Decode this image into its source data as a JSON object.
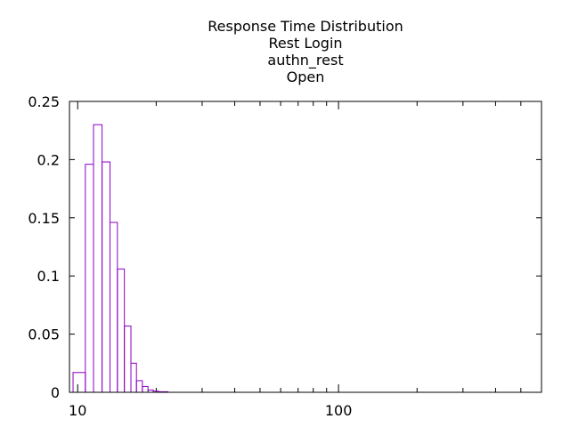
{
  "chart_data": {
    "type": "bar",
    "title_lines": [
      "Response Time Distribution",
      "Rest Login",
      "authn_rest",
      "Open"
    ],
    "x_scale": "log",
    "xlim": [
      9.3,
      600
    ],
    "ylim": [
      0,
      0.25
    ],
    "x_ticks": [
      {
        "value": 10,
        "label": "10"
      },
      {
        "value": 100,
        "label": "100"
      }
    ],
    "y_ticks": [
      {
        "value": 0,
        "label": "0"
      },
      {
        "value": 0.05,
        "label": "0.05"
      },
      {
        "value": 0.1,
        "label": "0.1"
      },
      {
        "value": 0.15,
        "label": "0.15"
      },
      {
        "value": 0.2,
        "label": "0.2"
      },
      {
        "value": 0.25,
        "label": "0.25"
      }
    ],
    "bar_color": "#8b00c8",
    "bins": [
      {
        "x0": 9.6,
        "x1": 10.7,
        "value": 0.017
      },
      {
        "x0": 10.7,
        "x1": 11.5,
        "value": 0.196
      },
      {
        "x0": 11.5,
        "x1": 12.4,
        "value": 0.23
      },
      {
        "x0": 12.4,
        "x1": 13.3,
        "value": 0.198
      },
      {
        "x0": 13.3,
        "x1": 14.2,
        "value": 0.146
      },
      {
        "x0": 14.2,
        "x1": 15.1,
        "value": 0.106
      },
      {
        "x0": 15.1,
        "x1": 16.0,
        "value": 0.057
      },
      {
        "x0": 16.0,
        "x1": 16.8,
        "value": 0.025
      },
      {
        "x0": 16.8,
        "x1": 17.7,
        "value": 0.01
      },
      {
        "x0": 17.7,
        "x1": 18.6,
        "value": 0.005
      },
      {
        "x0": 18.6,
        "x1": 19.5,
        "value": 0.002
      },
      {
        "x0": 19.5,
        "x1": 20.4,
        "value": 0.001
      },
      {
        "x0": 20.4,
        "x1": 22.2,
        "value": 0.0005
      }
    ]
  }
}
